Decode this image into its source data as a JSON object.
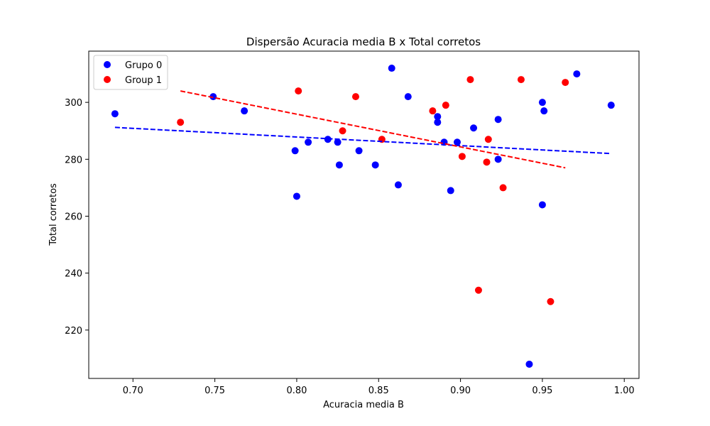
{
  "chart_data": {
    "type": "scatter",
    "title": "Dispersão Acuracia media B x Total corretos",
    "xlabel": "Acuracia media B",
    "ylabel": "Total corretos",
    "xlim": [
      0.673,
      1.009
    ],
    "ylim": [
      203,
      318
    ],
    "xticks": [
      "0.70",
      "0.75",
      "0.80",
      "0.85",
      "0.90",
      "0.95",
      "1.00"
    ],
    "yticks": [
      "220",
      "240",
      "260",
      "280",
      "300"
    ],
    "grid": false,
    "legend_position": "top-left",
    "series": [
      {
        "name": "Grupo 0",
        "color": "#0000ff",
        "points": [
          [
            0.689,
            296
          ],
          [
            0.749,
            302
          ],
          [
            0.768,
            297
          ],
          [
            0.799,
            283
          ],
          [
            0.8,
            267
          ],
          [
            0.807,
            286
          ],
          [
            0.819,
            287
          ],
          [
            0.825,
            286
          ],
          [
            0.826,
            278
          ],
          [
            0.838,
            283
          ],
          [
            0.848,
            278
          ],
          [
            0.858,
            312
          ],
          [
            0.862,
            271
          ],
          [
            0.868,
            302
          ],
          [
            0.886,
            295
          ],
          [
            0.886,
            293
          ],
          [
            0.89,
            286
          ],
          [
            0.894,
            269
          ],
          [
            0.898,
            286
          ],
          [
            0.908,
            291
          ],
          [
            0.923,
            294
          ],
          [
            0.923,
            280
          ],
          [
            0.942,
            208
          ],
          [
            0.95,
            300
          ],
          [
            0.951,
            297
          ],
          [
            0.95,
            264
          ],
          [
            0.971,
            310
          ],
          [
            0.992,
            299
          ]
        ],
        "trend": {
          "x_start": 0.689,
          "y_start": 291.2,
          "x_end": 0.992,
          "y_end": 282.0
        }
      },
      {
        "name": "Group 1",
        "color": "#ff0000",
        "points": [
          [
            0.729,
            293
          ],
          [
            0.801,
            304
          ],
          [
            0.828,
            290
          ],
          [
            0.836,
            302
          ],
          [
            0.852,
            287
          ],
          [
            0.883,
            297
          ],
          [
            0.891,
            299
          ],
          [
            0.901,
            281
          ],
          [
            0.906,
            308
          ],
          [
            0.911,
            234
          ],
          [
            0.916,
            279
          ],
          [
            0.917,
            287
          ],
          [
            0.926,
            270
          ],
          [
            0.937,
            308
          ],
          [
            0.955,
            230
          ],
          [
            0.964,
            307
          ]
        ],
        "trend": {
          "x_start": 0.729,
          "y_start": 304.0,
          "x_end": 0.964,
          "y_end": 277.0
        }
      }
    ]
  }
}
